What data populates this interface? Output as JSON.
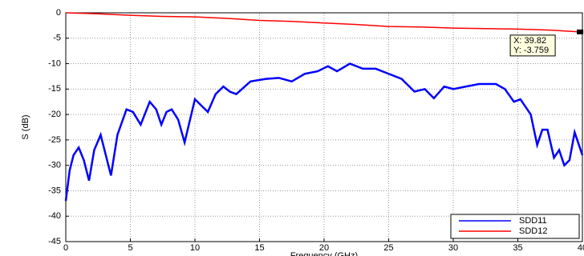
{
  "chart_data": {
    "type": "line",
    "xlabel": "Frequency (GHz)",
    "ylabel": "S (dB)",
    "xlim": [
      0,
      40
    ],
    "ylim": [
      -45,
      0
    ],
    "xticks": [
      0,
      5,
      10,
      15,
      20,
      25,
      30,
      35,
      40
    ],
    "yticks": [
      -45,
      -40,
      -35,
      -30,
      -25,
      -20,
      -15,
      -10,
      -5,
      0
    ],
    "grid": true,
    "legend": "lower right",
    "series": [
      {
        "name": "SDD11",
        "color": "#0000ff",
        "x": [
          0,
          0.3,
          0.6,
          1,
          1.4,
          1.8,
          2.2,
          2.7,
          3.1,
          3.5,
          4,
          4.7,
          5.2,
          5.8,
          6.5,
          7,
          7.4,
          7.8,
          8.2,
          8.7,
          9.2,
          10,
          10.6,
          11,
          11.6,
          12.2,
          12.7,
          13.2,
          14.3,
          15.5,
          16.5,
          17.5,
          18.5,
          19.5,
          20.3,
          21,
          22,
          23,
          24,
          25,
          26,
          27,
          27.8,
          28.5,
          29.3,
          30,
          31,
          32,
          33.3,
          34,
          34.7,
          35.2,
          36,
          36.5,
          36.9,
          37.3,
          37.8,
          38.2,
          38.6,
          39,
          39.4,
          40
        ],
        "values": [
          -37,
          -31,
          -28,
          -26.5,
          -29,
          -33,
          -27,
          -24,
          -28,
          -32,
          -24,
          -19,
          -19.5,
          -22,
          -17.5,
          -19,
          -22,
          -19.5,
          -19,
          -21,
          -25.5,
          -17,
          -18.5,
          -19.5,
          -16,
          -14.5,
          -15.5,
          -16,
          -13.5,
          -13,
          -12.8,
          -13.5,
          -12,
          -11.5,
          -10.5,
          -11.5,
          -10,
          -11,
          -11,
          -12,
          -13,
          -15.5,
          -15,
          -16.8,
          -14.5,
          -15,
          -14.5,
          -14,
          -14,
          -15,
          -17.5,
          -17,
          -20,
          -26,
          -23,
          -23,
          -28.5,
          -27,
          -30,
          -29,
          -23.5,
          -28
        ]
      },
      {
        "name": "SDD12",
        "color": "#ff0000",
        "x": [
          0,
          2.5,
          5,
          7.5,
          10,
          12.5,
          15,
          17.5,
          20,
          22.5,
          25,
          27.5,
          30,
          32.5,
          35,
          37.5,
          39.82,
          40
        ],
        "values": [
          0,
          -0.2,
          -0.5,
          -0.7,
          -0.8,
          -1.1,
          -1.5,
          -1.7,
          -2,
          -2.3,
          -2.7,
          -2.8,
          -3,
          -3.1,
          -3.2,
          -3.4,
          -3.759,
          -3.8
        ]
      }
    ],
    "cursor": {
      "x": 39.82,
      "y": -3.759,
      "labels": [
        "X: 39.82",
        "Y: -3.759"
      ]
    }
  }
}
